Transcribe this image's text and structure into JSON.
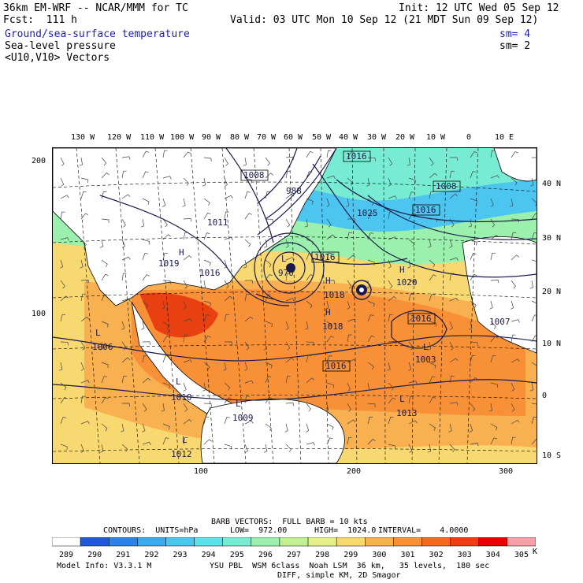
{
  "header": {
    "model": "36km EM-WRF -- NCAR/MMM for TC",
    "init": "Init: 12 UTC Wed 05 Sep 12",
    "fcst": "Fcst:  111 h",
    "valid": "Valid: 03 UTC Mon 10 Sep 12 (21 MDT Sun 09 Sep 12)",
    "fields": [
      {
        "name": "Ground/sea-surface temperature",
        "sm": "sm= 4",
        "color": "#2222aa"
      },
      {
        "name": "Sea-level pressure",
        "sm": "sm= 2",
        "color": "#000000"
      },
      {
        "name": "<U10,V10> Vectors",
        "sm": "",
        "color": "#000000"
      }
    ]
  },
  "axes": {
    "top_lon": [
      "130 W",
      "120 W",
      "110 W",
      "100 W",
      "90 W",
      "80 W",
      "70 W",
      "60 W",
      "50 W",
      "40 W",
      "30 W",
      "20 W",
      "10 W",
      "0",
      "10 E"
    ],
    "right_lat": [
      "40 N",
      "30 N",
      "20 N",
      "10 N",
      "0",
      "10 S"
    ],
    "left_grid": [
      "200",
      "100"
    ],
    "bottom_grid": [
      "100",
      "200",
      "300"
    ]
  },
  "pressure_labels": [
    {
      "text": "1008",
      "box": true
    },
    {
      "text": "1016",
      "box": true
    },
    {
      "text": "988",
      "box": false
    },
    {
      "text": "1008",
      "box": true
    },
    {
      "text": "1025",
      "box": false
    },
    {
      "text": "1016",
      "box": true
    },
    {
      "text": "1016",
      "box": true
    },
    {
      "text": "970",
      "box": false
    },
    {
      "text": "L",
      "box": false
    },
    {
      "text": "1018",
      "box": false
    },
    {
      "text": "H",
      "box": false
    },
    {
      "text": "1020",
      "box": false
    },
    {
      "text": "H",
      "box": false
    },
    {
      "text": "1018",
      "box": false
    },
    {
      "text": "H",
      "box": false
    },
    {
      "text": "1016",
      "box": true
    },
    {
      "text": "1007",
      "box": false
    },
    {
      "text": "1003",
      "box": false
    },
    {
      "text": "L",
      "box": false
    },
    {
      "text": "1006",
      "box": false
    },
    {
      "text": "L",
      "box": false
    },
    {
      "text": "1016",
      "box": true
    },
    {
      "text": "1010",
      "box": false
    },
    {
      "text": "L",
      "box": false
    },
    {
      "text": "1009",
      "box": false
    },
    {
      "text": "L",
      "box": false
    },
    {
      "text": "1013",
      "box": false
    },
    {
      "text": "L",
      "box": false
    },
    {
      "text": "1012",
      "box": false
    },
    {
      "text": "L",
      "box": false
    },
    {
      "text": "1019",
      "box": false
    },
    {
      "text": "H",
      "box": false
    },
    {
      "text": "1016",
      "box": false
    },
    {
      "text": "1011",
      "box": false
    }
  ],
  "barb_info": "BARB VECTORS:  FULL BARB = 10 kts",
  "contours": {
    "label": "CONTOURS:  UNITS=hPa",
    "low": "LOW=  972.00",
    "high": "HIGH=  1024.0",
    "interval": "INTERVAL=    4.0000"
  },
  "colorbar": {
    "values": [
      "289",
      "290",
      "291",
      "292",
      "293",
      "294",
      "295",
      "296",
      "297",
      "298",
      "299",
      "300",
      "301",
      "302",
      "303",
      "304",
      "305"
    ],
    "unit": "K",
    "colors": [
      "#ffffff",
      "#1e5ad8",
      "#2a84e6",
      "#3ca8ee",
      "#4cc6f0",
      "#5ee0e8",
      "#78ecd2",
      "#9af0ac",
      "#c0f090",
      "#e6f088",
      "#f8d870",
      "#f8b050",
      "#f89038",
      "#f06a20",
      "#e84010",
      "#e80000",
      "#f8a0a8"
    ]
  },
  "footer": {
    "model_info": "Model Info: V3.3.1 M",
    "physics": "YSU PBL  WSM 6class  Noah LSM  36 km,   35 levels,  180 sec",
    "diff": "DIFF, simple KM, 2D Smagor"
  }
}
